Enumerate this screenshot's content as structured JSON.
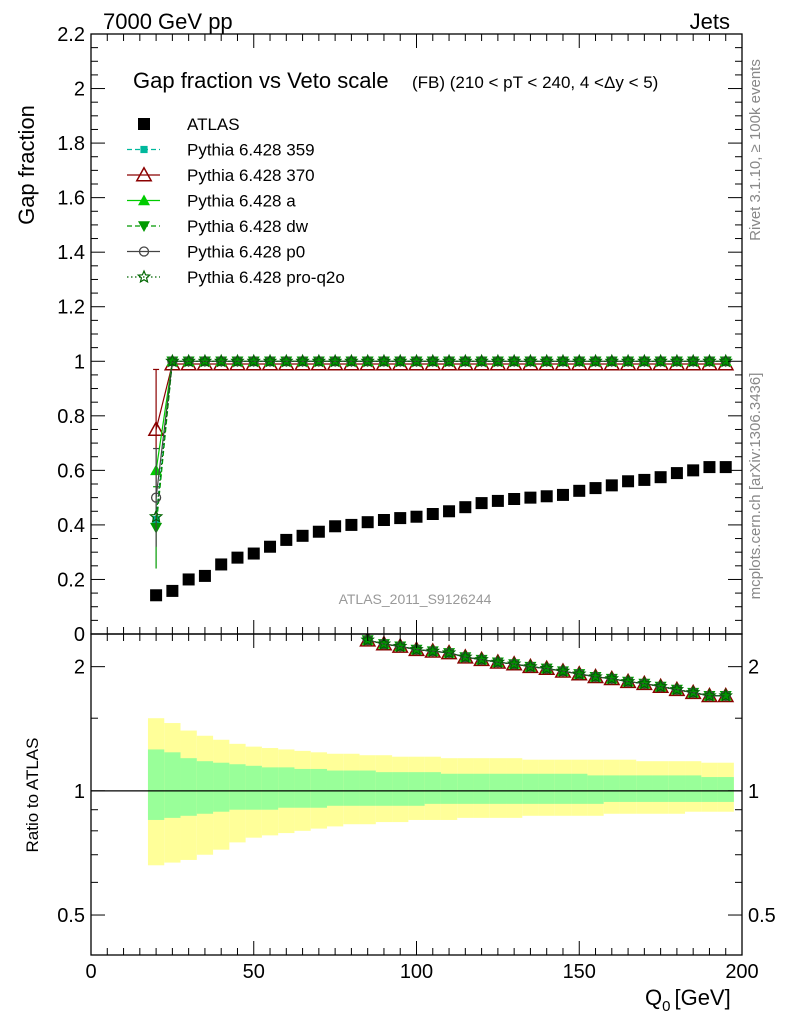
{
  "header": {
    "left": "7000 GeV pp",
    "right": "Jets"
  },
  "side_labels": {
    "rivet": "Rivet 3.1.10, ≥ 100k events",
    "mcplots": "mcplots.cern.ch [arXiv:1306.3436]"
  },
  "analysis_label": "ATLAS_2011_S9126244",
  "chart_data": [
    {
      "type": "scatter",
      "title": "Gap fraction vs Veto scale",
      "subtitle": "(FB) (210 < pT < 240, 4 <Δy < 5)",
      "ylabel": "Gap fraction",
      "xlabel": "Q₀ [GeV]",
      "xlabel_main": "Q",
      "xlabel_sub": "0",
      "xlabel_unit": "[GeV]",
      "xlim": [
        0,
        200
      ],
      "ylim": [
        0,
        2.2
      ],
      "x_ticks": [
        0,
        50,
        100,
        150,
        200
      ],
      "y_ticks": [
        0,
        0.2,
        0.4,
        0.6,
        0.8,
        1,
        1.2,
        1.4,
        1.6,
        1.8,
        2,
        2.2
      ],
      "y_tick_labels": [
        "0",
        "0.2",
        "0.4",
        "0.6",
        "0.8",
        "1",
        "1.2",
        "1.4",
        "1.6",
        "1.8",
        "2",
        "2.2"
      ],
      "x": [
        20,
        25,
        30,
        35,
        40,
        45,
        50,
        55,
        60,
        65,
        70,
        75,
        80,
        85,
        90,
        95,
        100,
        105,
        110,
        115,
        120,
        125,
        130,
        135,
        140,
        145,
        150,
        155,
        160,
        165,
        170,
        175,
        180,
        185,
        190,
        195
      ],
      "series": [
        {
          "name": "ATLAS",
          "marker": "square",
          "color": "#000000",
          "line": "none",
          "values": [
            0.142,
            0.158,
            0.2,
            0.213,
            0.255,
            0.28,
            0.295,
            0.32,
            0.345,
            0.36,
            0.375,
            0.395,
            0.4,
            0.41,
            0.418,
            0.425,
            0.43,
            0.44,
            0.45,
            0.465,
            0.48,
            0.488,
            0.495,
            0.5,
            0.505,
            0.51,
            0.525,
            0.535,
            0.545,
            0.56,
            0.565,
            0.575,
            0.59,
            0.6,
            0.612,
            0.612
          ]
        },
        {
          "name": "Pythia 6.428 359",
          "marker": "small-square",
          "color": "#00b89c",
          "line": "dashed",
          "values": [
            0.42,
            1,
            1,
            1,
            1,
            1,
            1,
            1,
            1,
            1,
            1,
            1,
            1,
            1,
            1,
            1,
            1,
            1,
            1,
            1,
            1,
            1,
            1,
            1,
            1,
            1,
            1,
            1,
            1,
            1,
            1,
            1,
            1,
            1,
            1,
            1
          ]
        },
        {
          "name": "Pythia 6.428 370",
          "marker": "open-triangle",
          "color": "#8b0000",
          "line": "solid",
          "values": [
            0.75,
            0.99,
            0.99,
            0.99,
            0.99,
            0.99,
            0.99,
            0.99,
            0.99,
            0.99,
            0.99,
            0.99,
            0.99,
            0.99,
            0.99,
            0.99,
            0.99,
            0.99,
            0.99,
            0.99,
            0.99,
            0.99,
            0.99,
            0.99,
            0.99,
            0.99,
            0.99,
            0.99,
            0.99,
            0.99,
            0.99,
            0.99,
            0.99,
            0.99,
            0.99,
            0.99
          ],
          "errors": [
            0.22,
            0,
            0,
            0,
            0,
            0,
            0,
            0,
            0,
            0,
            0,
            0,
            0,
            0,
            0,
            0,
            0,
            0,
            0,
            0,
            0,
            0,
            0,
            0,
            0,
            0,
            0,
            0,
            0,
            0,
            0,
            0,
            0,
            0,
            0,
            0
          ]
        },
        {
          "name": "Pythia 6.428 a",
          "marker": "triangle",
          "color": "#00cc00",
          "line": "solid",
          "values": [
            0.6,
            1,
            1,
            1,
            1,
            1,
            1,
            1,
            1,
            1,
            1,
            1,
            1,
            1,
            1,
            1,
            1,
            1,
            1,
            1,
            1,
            1,
            1,
            1,
            1,
            1,
            1,
            1,
            1,
            1,
            1,
            1,
            1,
            1,
            1,
            1
          ]
        },
        {
          "name": "Pythia 6.428 dw",
          "marker": "down-triangle",
          "color": "#009900",
          "line": "dashed",
          "values": [
            0.39,
            1,
            1,
            1,
            1,
            1,
            1,
            1,
            1,
            1,
            1,
            1,
            1,
            1,
            1,
            1,
            1,
            1,
            1,
            1,
            1,
            1,
            1,
            1,
            1,
            1,
            1,
            1,
            1,
            1,
            1,
            1,
            1,
            1,
            1,
            1
          ],
          "errors": [
            0.15,
            0,
            0,
            0,
            0,
            0,
            0,
            0,
            0,
            0,
            0,
            0,
            0,
            0,
            0,
            0,
            0,
            0,
            0,
            0,
            0,
            0,
            0,
            0,
            0,
            0,
            0,
            0,
            0,
            0,
            0,
            0,
            0,
            0,
            0,
            0
          ]
        },
        {
          "name": "Pythia 6.428 p0",
          "marker": "open-circle",
          "color": "#444444",
          "line": "solid",
          "values": [
            0.5,
            1,
            1,
            1,
            1,
            1,
            1,
            1,
            1,
            1,
            1,
            1,
            1,
            1,
            1,
            1,
            1,
            1,
            1,
            1,
            1,
            1,
            1,
            1,
            1,
            1,
            1,
            1,
            1,
            1,
            1,
            1,
            1,
            1,
            1,
            1
          ],
          "errors": [
            0.18,
            0,
            0,
            0,
            0,
            0,
            0,
            0,
            0,
            0,
            0,
            0,
            0,
            0,
            0,
            0,
            0,
            0,
            0,
            0,
            0,
            0,
            0,
            0,
            0,
            0,
            0,
            0,
            0,
            0,
            0,
            0,
            0,
            0,
            0,
            0
          ]
        },
        {
          "name": "Pythia 6.428 pro-q2o",
          "marker": "star",
          "color": "#006600",
          "line": "dotted",
          "values": [
            0.43,
            1,
            1,
            1,
            1,
            1,
            1,
            1,
            1,
            1,
            1,
            1,
            1,
            1,
            1,
            1,
            1,
            1,
            1,
            1,
            1,
            1,
            1,
            1,
            1,
            1,
            1,
            1,
            1,
            1,
            1,
            1,
            1,
            1,
            1,
            1
          ]
        }
      ],
      "legend_position": "top-left",
      "grid": false
    },
    {
      "type": "scatter",
      "ylabel": "Ratio to ATLAS",
      "ylim": [
        0.4,
        2.4
      ],
      "y_scale": "log",
      "y_ticks": [
        0.5,
        1,
        2
      ],
      "y_tick_labels": [
        "0.5",
        "1",
        "2"
      ],
      "x": [
        85,
        90,
        95,
        100,
        105,
        110,
        115,
        120,
        125,
        130,
        135,
        140,
        145,
        150,
        155,
        160,
        165,
        170,
        175,
        180,
        185,
        190,
        195
      ],
      "ratio_values": [
        2.32,
        2.27,
        2.24,
        2.2,
        2.18,
        2.16,
        2.11,
        2.08,
        2.05,
        2.03,
        2.0,
        1.98,
        1.95,
        1.92,
        1.89,
        1.87,
        1.84,
        1.82,
        1.79,
        1.76,
        1.73,
        1.7,
        1.7
      ],
      "band_edges": [
        17.5,
        22.5,
        27.5,
        32.5,
        37.5,
        42.5,
        47.5,
        52.5,
        57.5,
        62.5,
        67.5,
        72.5,
        77.5,
        82.5,
        87.5,
        92.5,
        97.5,
        102.5,
        107.5,
        112.5,
        117.5,
        122.5,
        127.5,
        132.5,
        137.5,
        142.5,
        147.5,
        152.5,
        157.5,
        162.5,
        167.5,
        172.5,
        177.5,
        182.5,
        187.5,
        192.5,
        197.5
      ],
      "band_inner_upper": [
        1.26,
        1.24,
        1.2,
        1.18,
        1.17,
        1.16,
        1.15,
        1.14,
        1.14,
        1.13,
        1.13,
        1.12,
        1.12,
        1.12,
        1.11,
        1.11,
        1.11,
        1.11,
        1.1,
        1.1,
        1.1,
        1.1,
        1.1,
        1.1,
        1.1,
        1.1,
        1.1,
        1.09,
        1.09,
        1.09,
        1.09,
        1.09,
        1.09,
        1.09,
        1.08,
        1.08
      ],
      "band_inner_lower": [
        0.85,
        0.86,
        0.87,
        0.88,
        0.89,
        0.9,
        0.9,
        0.9,
        0.91,
        0.91,
        0.91,
        0.92,
        0.92,
        0.92,
        0.92,
        0.92,
        0.92,
        0.93,
        0.93,
        0.93,
        0.93,
        0.93,
        0.93,
        0.93,
        0.93,
        0.93,
        0.93,
        0.93,
        0.94,
        0.94,
        0.94,
        0.94,
        0.94,
        0.94,
        0.94,
        0.94
      ],
      "band_outer_upper": [
        1.5,
        1.46,
        1.4,
        1.36,
        1.33,
        1.3,
        1.28,
        1.27,
        1.26,
        1.25,
        1.24,
        1.23,
        1.23,
        1.22,
        1.22,
        1.21,
        1.21,
        1.21,
        1.2,
        1.2,
        1.2,
        1.2,
        1.2,
        1.19,
        1.19,
        1.19,
        1.19,
        1.19,
        1.19,
        1.19,
        1.18,
        1.18,
        1.18,
        1.18,
        1.17,
        1.17
      ],
      "band_outer_lower": [
        0.66,
        0.67,
        0.68,
        0.7,
        0.72,
        0.75,
        0.77,
        0.78,
        0.79,
        0.8,
        0.81,
        0.82,
        0.83,
        0.83,
        0.84,
        0.84,
        0.85,
        0.85,
        0.85,
        0.86,
        0.86,
        0.86,
        0.86,
        0.87,
        0.87,
        0.87,
        0.87,
        0.87,
        0.88,
        0.88,
        0.88,
        0.88,
        0.88,
        0.89,
        0.89,
        0.89
      ],
      "band_colors": {
        "inner": "#99ff99",
        "outer": "#ffff99"
      },
      "reference_line": 1
    }
  ]
}
